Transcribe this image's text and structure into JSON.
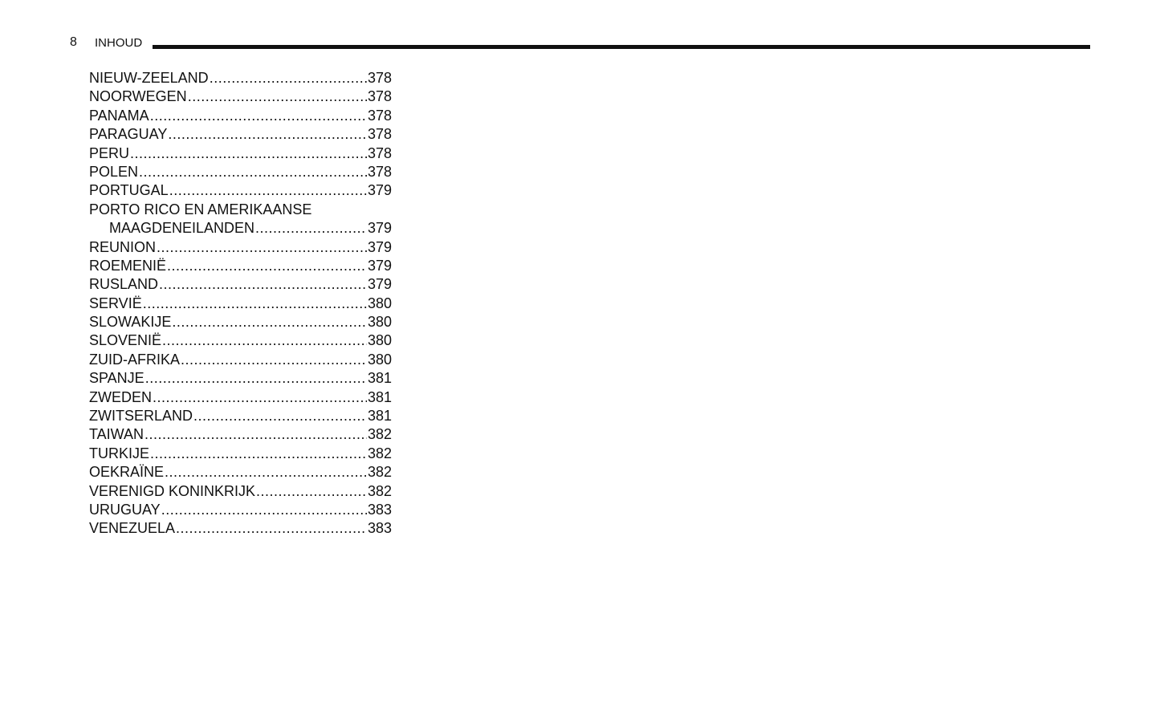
{
  "header": {
    "page_number": "8",
    "title": "INHOUD"
  },
  "entries": [
    {
      "label": "NIEUW-ZEELAND",
      "page": "378"
    },
    {
      "label": "NOORWEGEN",
      "page": "378"
    },
    {
      "label": "PANAMA",
      "page": "378"
    },
    {
      "label": "PARAGUAY",
      "page": "378"
    },
    {
      "label": "PERU",
      "page": "378"
    },
    {
      "label": "POLEN",
      "page": "378"
    },
    {
      "label": "PORTUGAL",
      "page": "379"
    },
    {
      "label": "PORTO RICO EN AMERIKAANSE",
      "page": ""
    },
    {
      "label": "MAAGDENEILANDEN",
      "page": "379",
      "indent": true
    },
    {
      "label": "REUNION",
      "page": "379"
    },
    {
      "label": "ROEMENIË",
      "page": "379"
    },
    {
      "label": "RUSLAND",
      "page": "379"
    },
    {
      "label": "SERVIË",
      "page": "380"
    },
    {
      "label": "SLOWAKIJE",
      "page": "380"
    },
    {
      "label": "SLOVENIË",
      "page": "380"
    },
    {
      "label": "ZUID-AFRIKA",
      "page": "380"
    },
    {
      "label": "SPANJE",
      "page": "381"
    },
    {
      "label": "ZWEDEN",
      "page": "381"
    },
    {
      "label": "ZWITSERLAND",
      "page": "381"
    },
    {
      "label": "TAIWAN",
      "page": "382"
    },
    {
      "label": "TURKIJE",
      "page": "382"
    },
    {
      "label": "OEKRAÏNE",
      "page": "382"
    },
    {
      "label": "VERENIGD KONINKRIJK",
      "page": "382"
    },
    {
      "label": "URUGUAY",
      "page": "383"
    },
    {
      "label": "VENEZUELA",
      "page": "383"
    }
  ]
}
